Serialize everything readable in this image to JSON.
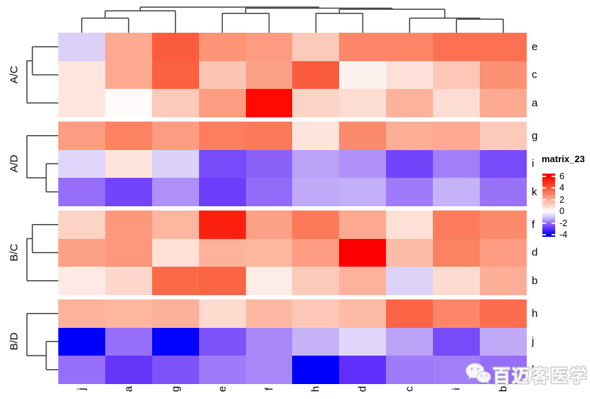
{
  "chart_data": {
    "type": "heatmap",
    "title": "",
    "legend": {
      "title": "matrix_23",
      "ticks": [
        6,
        4,
        2,
        0,
        -2,
        -4
      ],
      "domain_top": 6.45,
      "domain_bottom": -4.35,
      "position": "right"
    },
    "colormap": {
      "positive_stops": [
        [
          0,
          "#FFFFFF"
        ],
        [
          1,
          "#FDD5C8"
        ],
        [
          2,
          "#FDAE96"
        ],
        [
          3,
          "#FC8262"
        ],
        [
          4,
          "#FB5839"
        ],
        [
          5,
          "#FD2D16"
        ],
        [
          6,
          "#FF0000"
        ]
      ],
      "negative_stops": [
        [
          0,
          "#FFFFFF"
        ],
        [
          -1,
          "#D2C4F6"
        ],
        [
          -2,
          "#966EF9"
        ],
        [
          -3,
          "#5A28FB"
        ],
        [
          -4,
          "#0000FF"
        ]
      ]
    },
    "columns": [
      "j",
      "a",
      "g",
      "e",
      "f",
      "h",
      "d",
      "c",
      "i",
      "b"
    ],
    "row_groups": [
      {
        "label": "A/C",
        "rows": [
          "e",
          "c",
          "a"
        ],
        "values": [
          [
            -0.8,
            2.1,
            3.9,
            2.6,
            2.4,
            1.3,
            2.9,
            2.9,
            3.4,
            3.4
          ],
          [
            0.6,
            2.1,
            3.8,
            1.4,
            2.3,
            3.9,
            0.3,
            0.7,
            1.35,
            2.65
          ],
          [
            0.6,
            0.1,
            1.3,
            2.4,
            5.8,
            1.05,
            0.8,
            1.9,
            0.8,
            2.1
          ]
        ],
        "dendrogram": [
          {
            "a": 0,
            "b": 1,
            "h": 0.76
          },
          {
            "a": "m0",
            "b": 2,
            "h": 0.92
          }
        ]
      },
      {
        "label": "A/D",
        "rows": [
          "g",
          "i",
          "k"
        ],
        "values": [
          [
            2.4,
            3.0,
            2.4,
            3.1,
            3.2,
            0.65,
            2.8,
            2.0,
            2.1,
            1.3
          ],
          [
            -0.7,
            0.65,
            -0.8,
            -2.5,
            -2.2,
            -1.4,
            -1.6,
            -2.6,
            -1.8,
            -2.5
          ],
          [
            -2.0,
            -2.6,
            -1.6,
            -2.7,
            -2.05,
            -1.3,
            -1.25,
            -1.85,
            -1.2,
            -1.95
          ]
        ],
        "dendrogram": [
          {
            "a": 1,
            "b": 2,
            "h": 0.354
          },
          {
            "a": 0,
            "b": "m0",
            "h": 0.92
          }
        ]
      },
      {
        "label": "B/C",
        "rows": [
          "f",
          "d",
          "b"
        ],
        "values": [
          [
            1.05,
            2.5,
            1.8,
            5.3,
            2.3,
            3.2,
            2.1,
            0.75,
            3.15,
            2.8
          ],
          [
            2.3,
            2.5,
            0.75,
            1.9,
            1.8,
            2.4,
            6.0,
            1.65,
            3.0,
            2.4
          ],
          [
            0.5,
            0.95,
            3.6,
            3.7,
            0.45,
            1.3,
            1.9,
            -0.75,
            0.85,
            2.0
          ]
        ],
        "dendrogram": [
          {
            "a": 0,
            "b": 1,
            "h": 0.76
          },
          {
            "a": "m0",
            "b": 2,
            "h": 0.92
          }
        ]
      },
      {
        "label": "B/D",
        "rows": [
          "h",
          "j",
          "l"
        ],
        "values": [
          [
            1.9,
            1.8,
            1.95,
            0.9,
            1.75,
            1.35,
            1.7,
            3.7,
            2.9,
            3.5
          ],
          [
            -4.0,
            -2.0,
            -3.95,
            -2.4,
            -1.7,
            -1.2,
            -0.7,
            -1.4,
            -2.5,
            -1.3
          ],
          [
            -2.0,
            -2.8,
            -2.4,
            -1.85,
            -1.7,
            -4.0,
            -2.9,
            -1.85,
            -1.8,
            -2.0
          ]
        ],
        "dendrogram": [
          {
            "a": 1,
            "b": 2,
            "h": 0.354
          },
          {
            "a": 0,
            "b": "m0",
            "h": 0.92
          }
        ]
      }
    ],
    "column_dendrogram": [
      {
        "a": 0,
        "b": 1,
        "h": 0.488
      },
      {
        "a": "m0",
        "b": 2,
        "h": 0.731
      },
      {
        "a": 3,
        "b": 4,
        "h": 0.65
      },
      {
        "a": 5,
        "b": 6,
        "h": 0.65
      },
      {
        "a": 8,
        "b": 9,
        "h": 0.452
      },
      {
        "a": 7,
        "b": "m4",
        "h": 0.488
      },
      {
        "a": "m3",
        "b": "m5",
        "h": 0.786
      },
      {
        "a": "m2",
        "b": "m6",
        "h": 0.821
      },
      {
        "a": "m1",
        "b": "m7",
        "h": 0.857
      }
    ]
  },
  "watermark": {
    "text": "百迈客医学",
    "icon": "wechat-icon"
  }
}
